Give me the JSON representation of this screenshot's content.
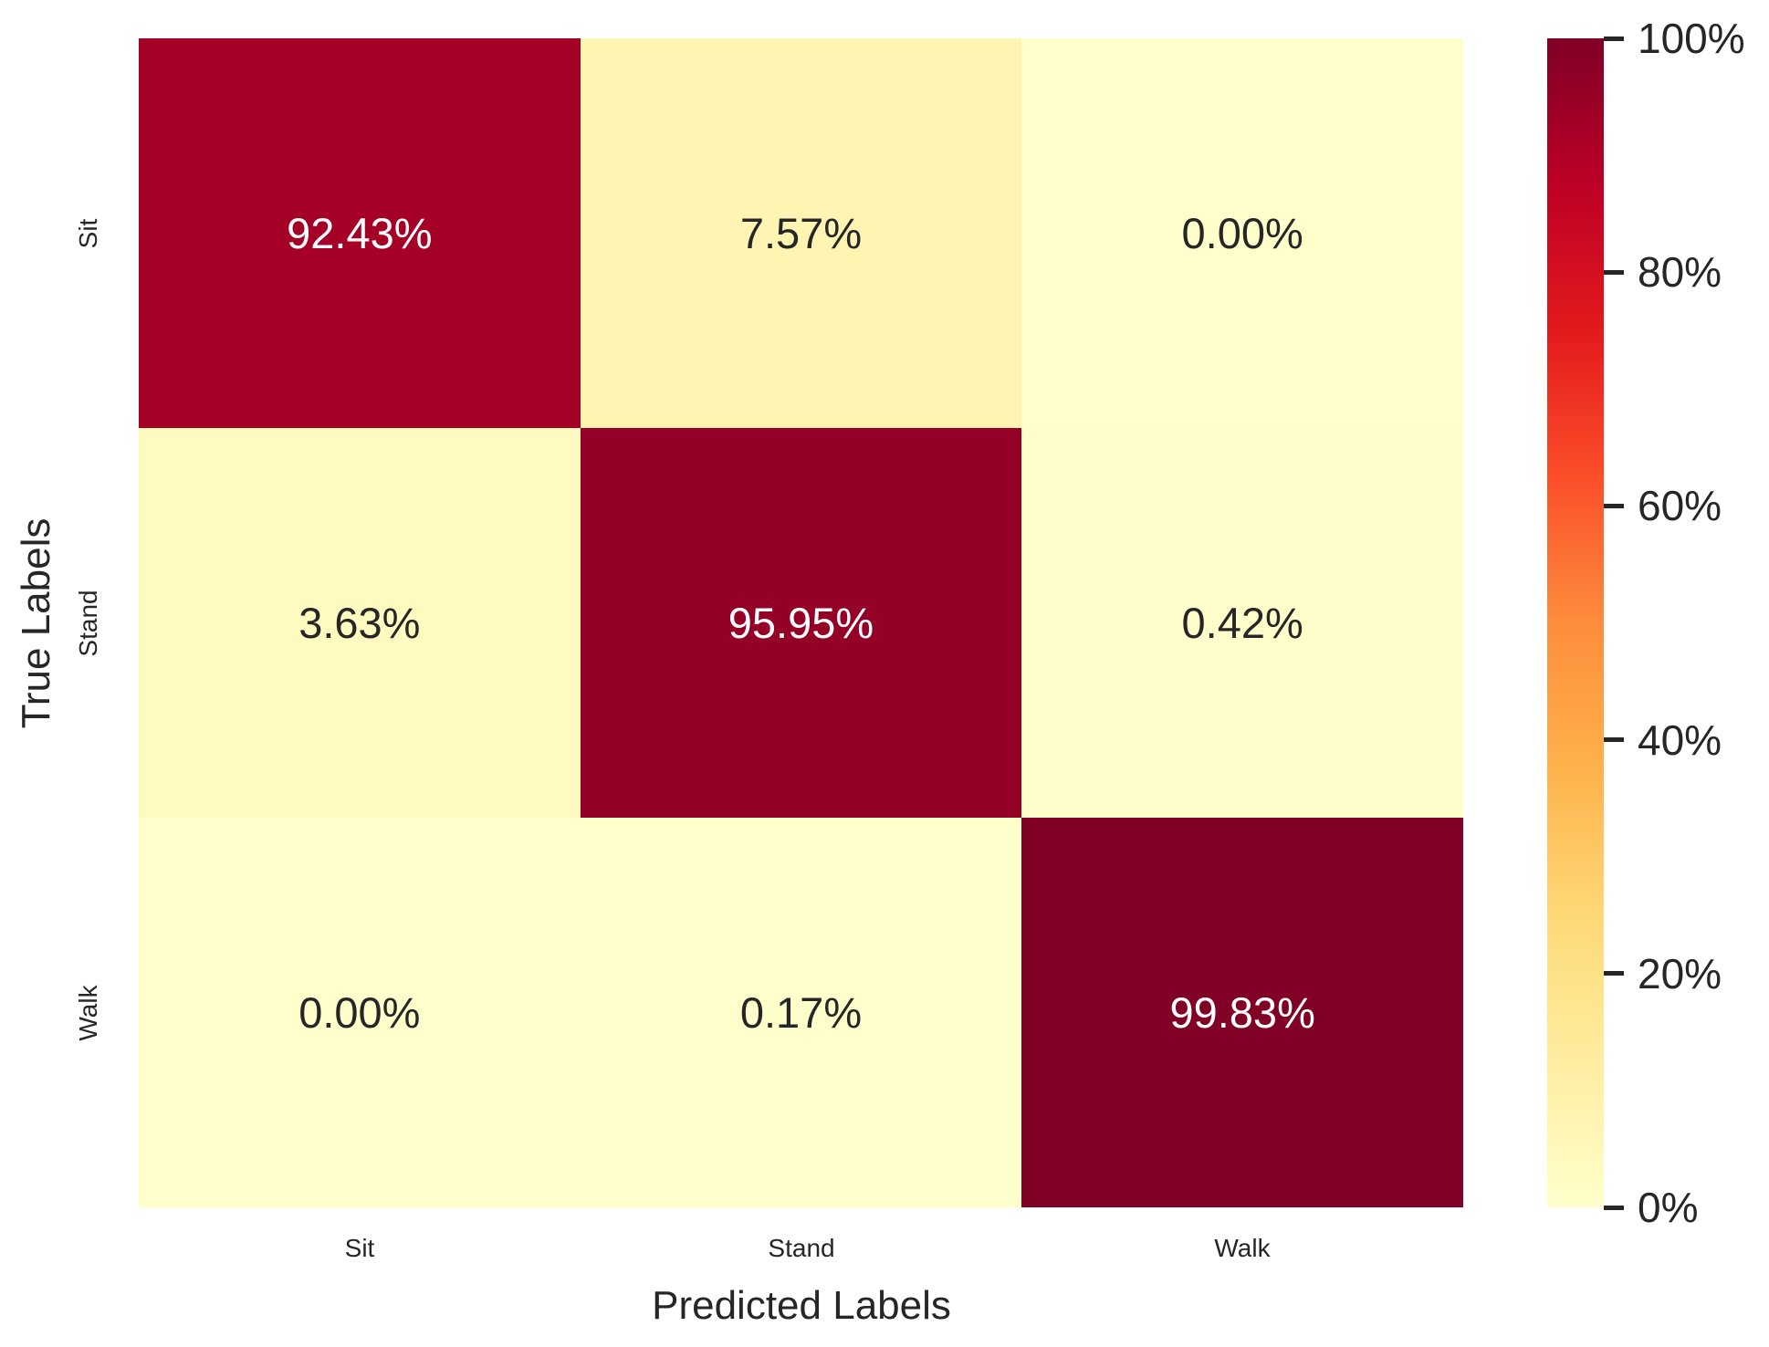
{
  "figure": {
    "background": "#ffffff",
    "text_color": "#262626"
  },
  "chart_data": {
    "type": "heatmap",
    "subtype": "confusion-matrix",
    "title": "",
    "xlabel": "Predicted Labels",
    "ylabel": "True Labels",
    "categories_x": [
      "Sit",
      "Stand",
      "Walk"
    ],
    "categories_y": [
      "Sit",
      "Stand",
      "Walk"
    ],
    "values_percent": [
      [
        92.43,
        7.57,
        0.0
      ],
      [
        3.63,
        95.95,
        0.42
      ],
      [
        0.0,
        0.17,
        99.83
      ]
    ],
    "cell_labels": [
      [
        "92.43%",
        "7.57%",
        "0.00%"
      ],
      [
        "3.63%",
        "95.95%",
        "0.42%"
      ],
      [
        "0.00%",
        "0.17%",
        "99.83%"
      ]
    ],
    "colormap": "YlOrRd",
    "value_range": [
      0,
      100
    ],
    "grid": false,
    "legend_position": "right-colorbar"
  },
  "axes": {
    "x_ticks": [
      "Sit",
      "Stand",
      "Walk"
    ],
    "y_ticks": [
      "Sit",
      "Stand",
      "Walk"
    ]
  },
  "cells": [
    {
      "label": "92.43%",
      "bg": "#a50026",
      "fg": "#ffffff"
    },
    {
      "label": "7.57%",
      "bg": "#fff4b1",
      "fg": "#262626"
    },
    {
      "label": "0.00%",
      "bg": "#ffffcc",
      "fg": "#262626"
    },
    {
      "label": "3.63%",
      "bg": "#fffabf",
      "fg": "#262626"
    },
    {
      "label": "95.95%",
      "bg": "#940026",
      "fg": "#ffffff"
    },
    {
      "label": "0.42%",
      "bg": "#fffecb",
      "fg": "#262626"
    },
    {
      "label": "0.00%",
      "bg": "#ffffcc",
      "fg": "#262626"
    },
    {
      "label": "0.17%",
      "bg": "#ffffcb",
      "fg": "#262626"
    },
    {
      "label": "99.83%",
      "bg": "#810026",
      "fg": "#ffffff"
    }
  ],
  "colorbar": {
    "ticks": [
      "100%",
      "80%",
      "60%",
      "40%",
      "20%",
      "0%"
    ],
    "gradient_stops": [
      "#ffffcc",
      "#ffeda0",
      "#fed976",
      "#feb24c",
      "#fd8d3c",
      "#fc4e2a",
      "#e31a1c",
      "#bd0026",
      "#800026"
    ]
  }
}
